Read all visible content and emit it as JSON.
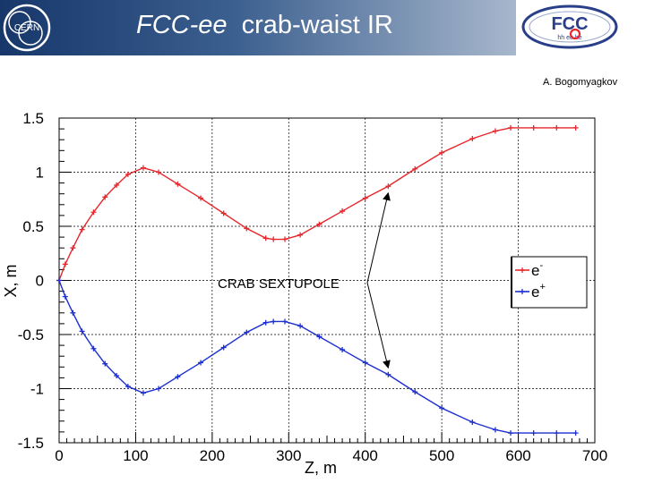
{
  "header": {
    "title_italic": "FCC-ee",
    "title_rest": "crab-waist IR",
    "cern_logo_text": "CERN",
    "fcc_logo_text": "FCC",
    "fcc_logo_subtext": "hh ee he"
  },
  "author": "A. Bogomyagkov",
  "colors": {
    "e_minus": "#e8262b",
    "e_plus": "#1c2fd0",
    "header_dark": "#17376a"
  },
  "chart_data": {
    "type": "line",
    "xlabel": "Z, m",
    "ylabel": "X, m",
    "xlim": [
      0,
      700
    ],
    "ylim": [
      -1.5,
      1.5
    ],
    "xticks": [
      0,
      100,
      200,
      300,
      400,
      500,
      600,
      700
    ],
    "yticks": [
      1.5,
      1,
      0.5,
      0,
      -0.5,
      -1,
      -1.5
    ],
    "xtick_labels": [
      "0",
      "100",
      "200",
      "300",
      "400",
      "500",
      "600",
      "700"
    ],
    "ytick_labels": [
      "1.5",
      "1",
      "0.5",
      "0",
      "-0.5",
      "-1",
      "-1.5"
    ],
    "grid": true,
    "legend": "right",
    "annotation": {
      "text": "CRAB SEXTUPOLE",
      "x": 430,
      "y_upper": 0.84,
      "y_lower": -0.84
    },
    "series": [
      {
        "name": "e",
        "sup": "-",
        "color": "#e8262b",
        "x": [
          0,
          8,
          18,
          30,
          45,
          60,
          75,
          90,
          110,
          130,
          155,
          185,
          215,
          245,
          270,
          280,
          295,
          315,
          340,
          370,
          400,
          430,
          465,
          500,
          540,
          570,
          590,
          620,
          650,
          675
        ],
        "y": [
          0,
          0.15,
          0.3,
          0.47,
          0.63,
          0.77,
          0.88,
          0.98,
          1.04,
          1.0,
          0.89,
          0.76,
          0.62,
          0.48,
          0.39,
          0.38,
          0.38,
          0.42,
          0.52,
          0.64,
          0.76,
          0.87,
          1.03,
          1.18,
          1.31,
          1.38,
          1.41,
          1.41,
          1.41,
          1.41
        ]
      },
      {
        "name": "e",
        "sup": "+",
        "color": "#1c2fd0",
        "x": [
          0,
          8,
          18,
          30,
          45,
          60,
          75,
          90,
          110,
          130,
          155,
          185,
          215,
          245,
          270,
          280,
          295,
          315,
          340,
          370,
          400,
          430,
          465,
          500,
          540,
          570,
          590,
          620,
          650,
          675
        ],
        "y": [
          0,
          -0.15,
          -0.3,
          -0.47,
          -0.63,
          -0.77,
          -0.88,
          -0.98,
          -1.04,
          -1.0,
          -0.89,
          -0.76,
          -0.62,
          -0.48,
          -0.39,
          -0.38,
          -0.38,
          -0.42,
          -0.52,
          -0.64,
          -0.76,
          -0.87,
          -1.03,
          -1.18,
          -1.31,
          -1.38,
          -1.41,
          -1.41,
          -1.41,
          -1.41
        ]
      }
    ]
  }
}
